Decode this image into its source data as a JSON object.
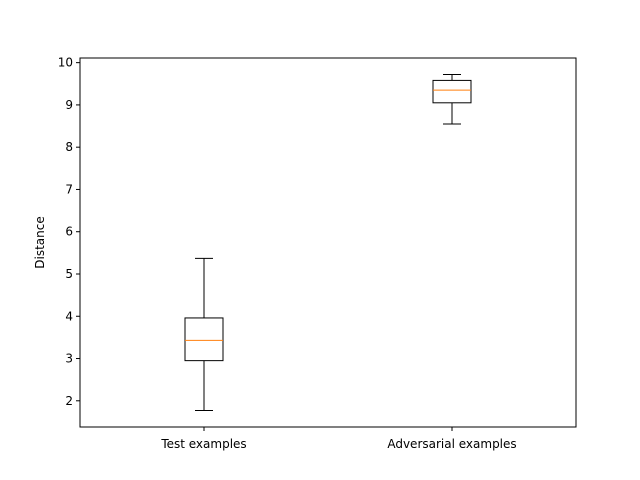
{
  "chart_data": {
    "type": "box",
    "categories": [
      "Test examples",
      "Adversarial examples"
    ],
    "boxes": [
      {
        "category": "Test examples",
        "whisker_low": 1.77,
        "q1": 2.95,
        "median": 3.43,
        "q3": 3.96,
        "whisker_high": 5.37
      },
      {
        "category": "Adversarial examples",
        "whisker_low": 8.55,
        "q1": 9.05,
        "median": 9.35,
        "q3": 9.58,
        "whisker_high": 9.72
      }
    ],
    "title": "",
    "xlabel": "",
    "ylabel": "Distance",
    "ylim": [
      1.38,
      10.11
    ],
    "yticks": [
      2,
      3,
      4,
      5,
      6,
      7,
      8,
      9,
      10
    ],
    "grid": false,
    "colors": {
      "box": "#000000",
      "median": "#ff7f0e",
      "axes": "#000000",
      "background": "#ffffff"
    }
  }
}
